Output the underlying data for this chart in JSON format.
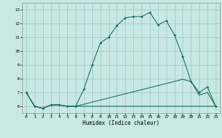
{
  "xlabel": "Humidex (Indice chaleur)",
  "background_color": "#c8e8e5",
  "grid_color": "#a0c8c5",
  "line_color": "#1a6b5a",
  "xlim": [
    -0.5,
    23.5
  ],
  "ylim": [
    5.5,
    13.5
  ],
  "xticks": [
    0,
    1,
    2,
    3,
    4,
    5,
    6,
    7,
    8,
    9,
    10,
    11,
    12,
    13,
    14,
    15,
    16,
    17,
    18,
    19,
    20,
    21,
    22,
    23
  ],
  "yticks": [
    6,
    7,
    8,
    9,
    10,
    11,
    12,
    13
  ],
  "line1_x": [
    0,
    1,
    2,
    3,
    4,
    5,
    6,
    7,
    8,
    9,
    10,
    11,
    12,
    13,
    14,
    15,
    16,
    17,
    18,
    19,
    20,
    21,
    22,
    23
  ],
  "line1_y": [
    7.0,
    6.0,
    5.85,
    6.1,
    6.1,
    6.0,
    6.0,
    7.25,
    9.0,
    10.6,
    11.0,
    11.85,
    12.4,
    12.5,
    12.5,
    12.8,
    11.9,
    12.2,
    11.15,
    9.6,
    7.8,
    7.0,
    7.4,
    6.0
  ],
  "line2_x": [
    0,
    1,
    2,
    3,
    4,
    5,
    6,
    7,
    8,
    9,
    10,
    11,
    12,
    13,
    14,
    15,
    16,
    17,
    18,
    19,
    20,
    21,
    22,
    23
  ],
  "line2_y": [
    7.0,
    6.0,
    5.85,
    6.1,
    6.1,
    6.0,
    6.0,
    6.15,
    6.3,
    6.45,
    6.6,
    6.75,
    6.9,
    7.05,
    7.2,
    7.35,
    7.5,
    7.65,
    7.8,
    7.95,
    7.8,
    6.8,
    7.0,
    6.0
  ],
  "line3_x": [
    0,
    1,
    2,
    3,
    4,
    5,
    6,
    7,
    8,
    9,
    10,
    11,
    12,
    13,
    14,
    15,
    16,
    17,
    18,
    19,
    20,
    21,
    22,
    23
  ],
  "line3_y": [
    7.0,
    6.0,
    5.85,
    6.1,
    6.1,
    6.0,
    6.0,
    6.0,
    6.0,
    6.0,
    6.0,
    6.0,
    6.0,
    6.0,
    6.0,
    6.0,
    6.0,
    6.0,
    6.0,
    6.0,
    6.0,
    6.0,
    6.0,
    6.0
  ]
}
